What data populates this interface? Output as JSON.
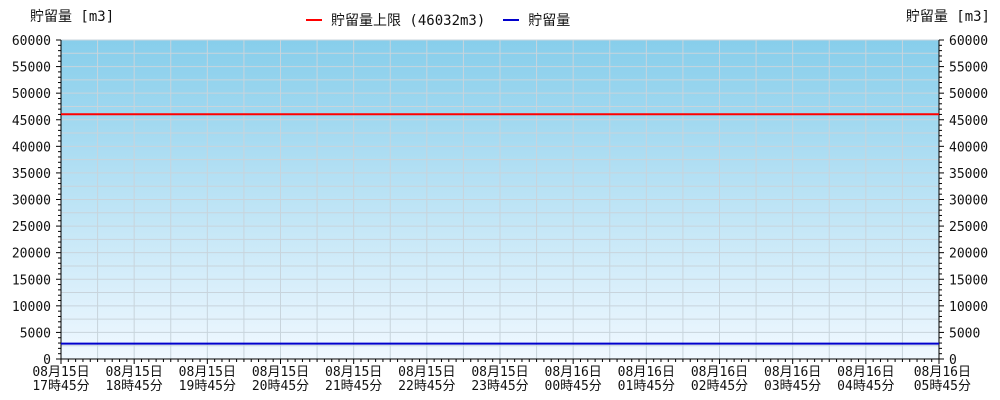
{
  "chart_data": {
    "type": "line",
    "ylabel_left": "貯留量 [m3]",
    "ylabel_right": "貯留量 [m3]",
    "ylim": [
      0,
      60000
    ],
    "yticks": [
      0,
      5000,
      10000,
      15000,
      20000,
      25000,
      30000,
      35000,
      40000,
      45000,
      50000,
      55000,
      60000
    ],
    "x_labels": [
      {
        "date": "08月15日",
        "time": "17時45分"
      },
      {
        "date": "08月15日",
        "time": "18時45分"
      },
      {
        "date": "08月15日",
        "time": "19時45分"
      },
      {
        "date": "08月15日",
        "time": "20時45分"
      },
      {
        "date": "08月15日",
        "time": "21時45分"
      },
      {
        "date": "08月15日",
        "time": "22時45分"
      },
      {
        "date": "08月15日",
        "time": "23時45分"
      },
      {
        "date": "08月16日",
        "time": "00時45分"
      },
      {
        "date": "08月16日",
        "time": "01時45分"
      },
      {
        "date": "08月16日",
        "time": "02時45分"
      },
      {
        "date": "08月16日",
        "time": "03時45分"
      },
      {
        "date": "08月16日",
        "time": "04時45分"
      },
      {
        "date": "08月16日",
        "time": "05時45分"
      }
    ],
    "series": [
      {
        "name": "貯留量上限 (46032m3)",
        "color": "#ff0000",
        "values": [
          46032,
          46032,
          46032,
          46032,
          46032,
          46032,
          46032,
          46032,
          46032,
          46032,
          46032,
          46032,
          46032
        ]
      },
      {
        "name": "貯留量",
        "color": "#0000cc",
        "values": [
          2900,
          2900,
          2900,
          2900,
          2900,
          2900,
          2900,
          2900,
          2900,
          2900,
          2900,
          2900,
          2900
        ]
      }
    ],
    "grid": true,
    "legend_position": "top-center",
    "background_gradient": [
      "#87ceeb",
      "#f0f8ff"
    ]
  }
}
